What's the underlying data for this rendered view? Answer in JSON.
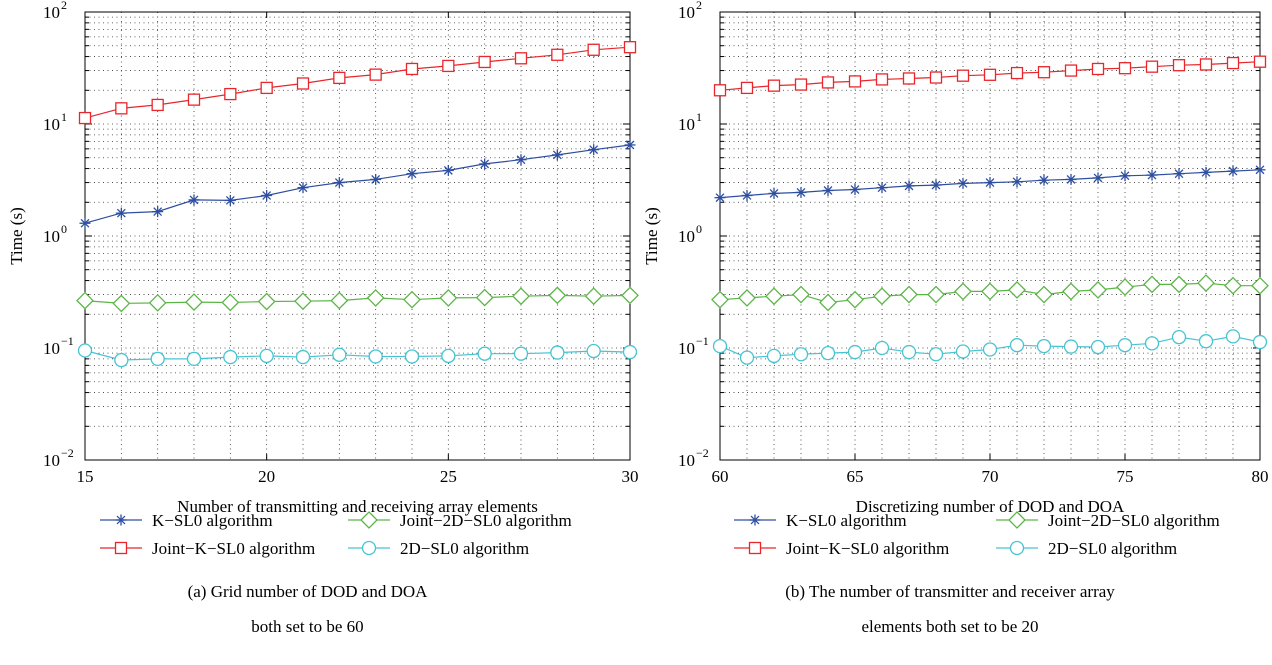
{
  "chart_data": [
    {
      "type": "line",
      "scale": {
        "x": "linear",
        "y": "log"
      },
      "grid": true,
      "legend_position": "bottom",
      "xlabel": "Number of transmitting and receiving array elements",
      "ylabel": "Time (s)",
      "xlim": [
        15,
        30
      ],
      "ylim": [
        0.01,
        100
      ],
      "x_ticks": [
        "15",
        "20",
        "25",
        "30"
      ],
      "y_ticks": [
        {
          "base": "10",
          "exp": "−2"
        },
        {
          "base": "10",
          "exp": "−1"
        },
        {
          "base": "10",
          "exp": "0"
        },
        {
          "base": "10",
          "exp": "1"
        },
        {
          "base": "10",
          "exp": "2"
        }
      ],
      "caption_lines": [
        "(a) Grid number of DOD and DOA",
        "both set to be 60"
      ],
      "x": [
        15,
        16,
        17,
        18,
        19,
        20,
        21,
        22,
        23,
        24,
        25,
        26,
        27,
        28,
        29,
        30
      ],
      "series": [
        {
          "name": "K−SL0 algorithm",
          "color": "#2e4fa0",
          "marker": "asterisk",
          "values": [
            1.3,
            1.6,
            1.65,
            2.1,
            2.08,
            2.3,
            2.7,
            3.0,
            3.2,
            3.6,
            3.85,
            4.4,
            4.8,
            5.3,
            5.9,
            6.5
          ]
        },
        {
          "name": "Joint−K−SL0 algorithm",
          "color": "#e8262b",
          "marker": "square",
          "values": [
            11.3,
            13.8,
            14.8,
            16.5,
            18.5,
            21.0,
            23.0,
            25.8,
            27.6,
            31.0,
            33.0,
            35.8,
            38.6,
            41.5,
            46.0,
            48.5
          ]
        },
        {
          "name": "Joint−2D−SL0 algorithm",
          "color": "#5cb548",
          "marker": "diamond",
          "values": [
            0.265,
            0.25,
            0.253,
            0.257,
            0.255,
            0.26,
            0.262,
            0.265,
            0.28,
            0.27,
            0.28,
            0.282,
            0.29,
            0.295,
            0.29,
            0.295
          ]
        },
        {
          "name": "2D−SL0 algorithm",
          "color": "#47c4d2",
          "marker": "circle",
          "values": [
            0.095,
            0.078,
            0.08,
            0.08,
            0.083,
            0.085,
            0.083,
            0.087,
            0.084,
            0.084,
            0.085,
            0.089,
            0.089,
            0.091,
            0.094,
            0.092
          ]
        }
      ]
    },
    {
      "type": "line",
      "scale": {
        "x": "linear",
        "y": "log"
      },
      "grid": true,
      "legend_position": "bottom",
      "xlabel": "Discretizing number of DOD and DOA",
      "ylabel": "Time (s)",
      "xlim": [
        60,
        80
      ],
      "ylim": [
        0.01,
        100
      ],
      "x_ticks": [
        "60",
        "65",
        "70",
        "75",
        "80"
      ],
      "y_ticks": [
        {
          "base": "10",
          "exp": "−2"
        },
        {
          "base": "10",
          "exp": "−1"
        },
        {
          "base": "10",
          "exp": "0"
        },
        {
          "base": "10",
          "exp": "1"
        },
        {
          "base": "10",
          "exp": "2"
        }
      ],
      "caption_lines": [
        "(b) The number of transmitter and receiver array",
        "elements both set to be 20"
      ],
      "x": [
        60,
        61,
        62,
        63,
        64,
        65,
        66,
        67,
        68,
        69,
        70,
        71,
        72,
        73,
        74,
        75,
        76,
        77,
        78,
        79,
        80
      ],
      "series": [
        {
          "name": "K−SL0 algorithm",
          "color": "#2e4fa0",
          "marker": "asterisk",
          "values": [
            2.2,
            2.3,
            2.4,
            2.45,
            2.55,
            2.6,
            2.7,
            2.8,
            2.85,
            2.95,
            3.0,
            3.05,
            3.15,
            3.2,
            3.3,
            3.45,
            3.5,
            3.6,
            3.7,
            3.8,
            3.9
          ]
        },
        {
          "name": "Joint−K−SL0 algorithm",
          "color": "#e8262b",
          "marker": "square",
          "values": [
            20.0,
            21.0,
            22.0,
            22.5,
            23.5,
            24.0,
            25.0,
            25.5,
            26.0,
            27.0,
            27.5,
            28.5,
            29.0,
            30.0,
            31.0,
            31.5,
            32.5,
            33.5,
            34.0,
            35.0,
            36.0
          ]
        },
        {
          "name": "Joint−2D−SL0 algorithm",
          "color": "#5cb548",
          "marker": "diamond",
          "values": [
            0.27,
            0.28,
            0.29,
            0.3,
            0.255,
            0.27,
            0.29,
            0.3,
            0.3,
            0.32,
            0.32,
            0.33,
            0.3,
            0.32,
            0.33,
            0.35,
            0.37,
            0.37,
            0.38,
            0.36,
            0.36
          ]
        },
        {
          "name": "2D−SL0 algorithm",
          "color": "#47c4d2",
          "marker": "circle",
          "values": [
            0.104,
            0.082,
            0.085,
            0.088,
            0.09,
            0.092,
            0.1,
            0.092,
            0.088,
            0.093,
            0.097,
            0.106,
            0.104,
            0.103,
            0.102,
            0.106,
            0.11,
            0.125,
            0.115,
            0.127,
            0.113
          ]
        }
      ]
    }
  ]
}
